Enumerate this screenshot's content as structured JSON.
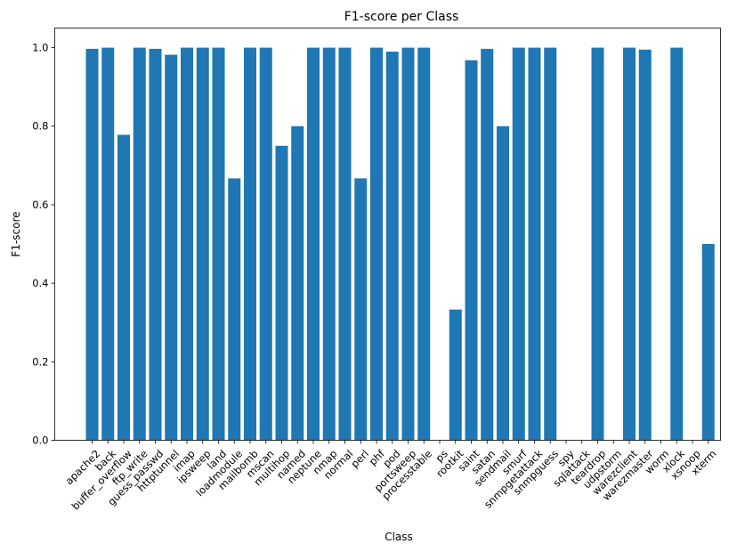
{
  "chart_data": {
    "type": "bar",
    "title": "F1-score per Class",
    "xlabel": "Class",
    "ylabel": "F1-score",
    "ylim": [
      0,
      1.05
    ],
    "yticks": [
      0.0,
      0.2,
      0.4,
      0.6,
      0.8,
      1.0
    ],
    "ytick_labels": [
      "0.0",
      "0.2",
      "0.4",
      "0.6",
      "0.8",
      "1.0"
    ],
    "bar_color": "#1f77b4",
    "grid": false,
    "legend": "none",
    "categories": [
      "apache2",
      "back",
      "buffer_overflow",
      "ftp_write",
      "guess_passwd",
      "httptunnel",
      "imap",
      "ipsweep",
      "land",
      "loadmodule",
      "mailbomb",
      "mscan",
      "multihop",
      "named",
      "neptune",
      "nmap",
      "normal",
      "perl",
      "phf",
      "pod",
      "portsweep",
      "processtable",
      "ps",
      "rootkit",
      "saint",
      "satan",
      "sendmail",
      "smurf",
      "snmpgetattack",
      "snmpguess",
      "spy",
      "sqlattack",
      "teardrop",
      "udpstorm",
      "warezclient",
      "warezmaster",
      "worm",
      "xlock",
      "xsnoop",
      "xterm"
    ],
    "values": [
      0.997,
      1.0,
      0.778,
      1.0,
      0.997,
      0.982,
      1.0,
      1.0,
      1.0,
      0.667,
      1.0,
      1.0,
      0.75,
      0.8,
      1.0,
      1.0,
      1.0,
      0.667,
      1.0,
      0.99,
      1.0,
      1.0,
      0.0,
      0.333,
      0.968,
      0.997,
      0.8,
      1.0,
      1.0,
      1.0,
      0.0,
      0.0,
      1.0,
      0.0,
      1.0,
      0.995,
      0.0,
      1.0,
      0.0,
      0.5
    ]
  }
}
